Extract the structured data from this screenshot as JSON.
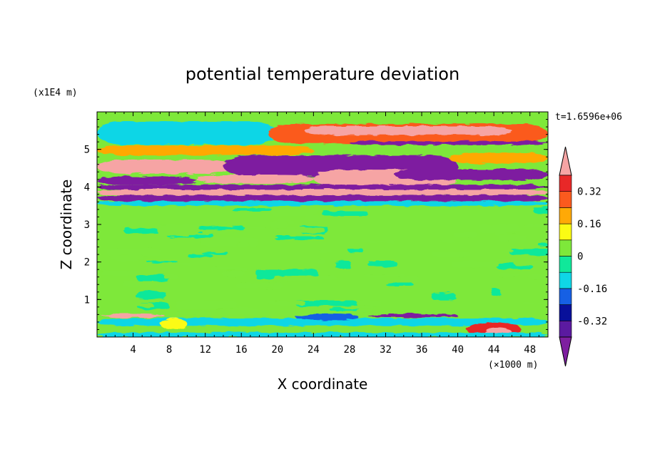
{
  "chart_data": {
    "type": "heatmap",
    "title": "potential temperature deviation",
    "xlabel": "X coordinate",
    "ylabel": "Z coordinate",
    "x_unit": "(×1000 m)",
    "y_unit": "(x1E4 m)",
    "time_label": "t=1.6596e+06",
    "xlim": [
      0,
      50
    ],
    "ylim": [
      0,
      6
    ],
    "x_ticks": [
      4,
      8,
      12,
      16,
      20,
      24,
      28,
      32,
      36,
      40,
      44,
      48
    ],
    "y_ticks": [
      1,
      2,
      3,
      4,
      5
    ],
    "colorbar": {
      "levels": [
        -0.4,
        -0.32,
        -0.24,
        -0.16,
        -0.08,
        0,
        0.08,
        0.16,
        0.24,
        0.32,
        0.4
      ],
      "tick_labels": [
        "-0.32",
        "-0.16",
        "0",
        "0.16",
        "0.32"
      ],
      "tick_values": [
        -0.32,
        -0.16,
        0,
        0.16,
        0.32
      ],
      "under_color": "#7e1fa0",
      "over_color": "#f6a4a4",
      "colors": [
        "#5b1aa0",
        "#08109a",
        "#1660e4",
        "#0fd6e6",
        "#10e89a",
        "#7ee83a",
        "#fbfb14",
        "#ffa906",
        "#fb5a1e",
        "#e82828"
      ]
    },
    "description_bands": [
      {
        "z": [
          3.5,
          6.0
        ],
        "pattern": "alternating strong positive (pink) and negative (purple) layers"
      },
      {
        "z": [
          0.6,
          3.5
        ],
        "pattern": "weak fluctuations near 0 (green / light green)"
      },
      {
        "z": [
          0.0,
          0.6
        ],
        "pattern": "mixed cyan/blue negative with warm patches near x=44"
      }
    ],
    "blobs": [
      {
        "x": [
          0.2,
          18.5
        ],
        "z": [
          5.3,
          5.68
        ],
        "v": -0.5
      },
      {
        "x": [
          0.0,
          20.0
        ],
        "z": [
          5.12,
          5.75
        ],
        "v": -0.1
      },
      {
        "x": [
          19.0,
          50.0
        ],
        "z": [
          5.15,
          5.68
        ],
        "v": 0.24
      },
      {
        "x": [
          23.0,
          46.0
        ],
        "z": [
          5.38,
          5.62
        ],
        "v": 0.5
      },
      {
        "x": [
          28.0,
          50.0
        ],
        "z": [
          5.12,
          5.22
        ],
        "v": -0.5
      },
      {
        "x": [
          0.0,
          24.0
        ],
        "z": [
          4.85,
          5.1
        ],
        "v": 0.2
      },
      {
        "x": [
          0.0,
          15.0
        ],
        "z": [
          4.35,
          4.72
        ],
        "v": 0.5
      },
      {
        "x": [
          14.0,
          40.0
        ],
        "z": [
          4.28,
          4.84
        ],
        "v": -0.5
      },
      {
        "x": [
          39.0,
          50.0
        ],
        "z": [
          4.62,
          4.92
        ],
        "v": 0.2
      },
      {
        "x": [
          11.0,
          24.0
        ],
        "z": [
          4.1,
          4.32
        ],
        "v": 0.5
      },
      {
        "x": [
          24.0,
          40.0
        ],
        "z": [
          4.0,
          4.46
        ],
        "v": 0.5
      },
      {
        "x": [
          33.0,
          50.0
        ],
        "z": [
          4.18,
          4.48
        ],
        "v": -0.5
      },
      {
        "x": [
          0.0,
          11.0
        ],
        "z": [
          4.06,
          4.28
        ],
        "v": -0.5
      },
      {
        "x": [
          0.0,
          50.0
        ],
        "z": [
          3.93,
          4.06
        ],
        "v": -0.5
      },
      {
        "x": [
          0.0,
          50.0
        ],
        "z": [
          3.78,
          3.93
        ],
        "v": 0.5
      },
      {
        "x": [
          0.0,
          50.0
        ],
        "z": [
          3.62,
          3.78
        ],
        "v": -0.5
      },
      {
        "x": [
          0.0,
          50.0
        ],
        "z": [
          3.5,
          3.62
        ],
        "v": -0.12
      },
      {
        "x": [
          0.5,
          7.5
        ],
        "z": [
          0.52,
          0.62
        ],
        "v": 0.5
      },
      {
        "x": [
          0.0,
          50.0
        ],
        "z": [
          0.3,
          0.5
        ],
        "v": -0.14
      },
      {
        "x": [
          7.0,
          10.0
        ],
        "z": [
          0.2,
          0.5
        ],
        "v": 0.14
      },
      {
        "x": [
          22.0,
          29.0
        ],
        "z": [
          0.45,
          0.62
        ],
        "v": -0.22
      },
      {
        "x": [
          30.0,
          40.0
        ],
        "z": [
          0.52,
          0.62
        ],
        "v": -0.5
      },
      {
        "x": [
          41.0,
          47.0
        ],
        "z": [
          0.0,
          0.4
        ],
        "v": 0.33
      },
      {
        "x": [
          43.0,
          46.0
        ],
        "z": [
          0.0,
          0.25
        ],
        "v": 0.5
      },
      {
        "x": [
          0.0,
          50.0
        ],
        "z": [
          0.0,
          0.12
        ],
        "v": -0.1
      }
    ]
  }
}
